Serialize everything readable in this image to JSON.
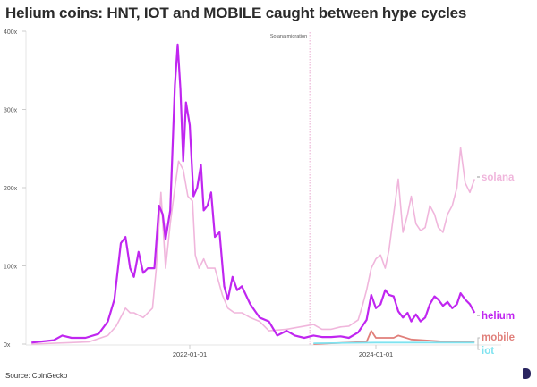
{
  "chart_data": {
    "type": "line",
    "title": "Helium coins: HNT, IOT and MOBILE caught between hype cycles",
    "xlabel": "",
    "ylabel": "",
    "ylim": [
      0,
      400
    ],
    "yticks": [
      0,
      100,
      200,
      300,
      400
    ],
    "ytick_labels": [
      "0x",
      "100x",
      "200x",
      "300x",
      "400x"
    ],
    "xticks": [
      2022.0,
      2024.0
    ],
    "xtick_labels": [
      "2022-01-01",
      "2024-01-01"
    ],
    "grid": false,
    "annotation": {
      "x": 2023.29,
      "label": "Solana migration"
    },
    "series": [
      {
        "name": "solana",
        "color": "#f0b6dc",
        "width": 1.6,
        "points": [
          [
            2020.3,
            0
          ],
          [
            2020.73,
            2
          ],
          [
            2020.92,
            3
          ],
          [
            2021.12,
            11
          ],
          [
            2021.21,
            23
          ],
          [
            2021.31,
            46
          ],
          [
            2021.36,
            40
          ],
          [
            2021.4,
            40
          ],
          [
            2021.5,
            34
          ],
          [
            2021.6,
            46
          ],
          [
            2021.64,
            97
          ],
          [
            2021.69,
            194
          ],
          [
            2021.74,
            97
          ],
          [
            2021.79,
            154
          ],
          [
            2021.84,
            200
          ],
          [
            2021.88,
            234
          ],
          [
            2021.93,
            223
          ],
          [
            2021.98,
            189
          ],
          [
            2022.03,
            183
          ],
          [
            2022.06,
            114
          ],
          [
            2022.1,
            97
          ],
          [
            2022.15,
            109
          ],
          [
            2022.19,
            97
          ],
          [
            2022.27,
            97
          ],
          [
            2022.35,
            63
          ],
          [
            2022.41,
            46
          ],
          [
            2022.48,
            40
          ],
          [
            2022.56,
            40
          ],
          [
            2022.65,
            34
          ],
          [
            2022.75,
            29
          ],
          [
            2022.85,
            17
          ],
          [
            2023.04,
            19
          ],
          [
            2023.23,
            23
          ],
          [
            2023.33,
            25
          ],
          [
            2023.42,
            19
          ],
          [
            2023.52,
            19
          ],
          [
            2023.62,
            22
          ],
          [
            2023.71,
            23
          ],
          [
            2023.81,
            31
          ],
          [
            2023.86,
            51
          ],
          [
            2023.9,
            69
          ],
          [
            2023.95,
            97
          ],
          [
            2024.0,
            109
          ],
          [
            2024.05,
            114
          ],
          [
            2024.1,
            97
          ],
          [
            2024.14,
            120
          ],
          [
            2024.19,
            166
          ],
          [
            2024.24,
            211
          ],
          [
            2024.29,
            143
          ],
          [
            2024.34,
            166
          ],
          [
            2024.38,
            189
          ],
          [
            2024.43,
            154
          ],
          [
            2024.48,
            145
          ],
          [
            2024.53,
            149
          ],
          [
            2024.58,
            177
          ],
          [
            2024.63,
            166
          ],
          [
            2024.67,
            149
          ],
          [
            2024.72,
            143
          ],
          [
            2024.77,
            166
          ],
          [
            2024.82,
            177
          ],
          [
            2024.87,
            200
          ],
          [
            2024.91,
            251
          ],
          [
            2024.96,
            206
          ],
          [
            2025.01,
            194
          ],
          [
            2025.06,
            211
          ]
        ]
      },
      {
        "name": "helium",
        "color": "#c026f0",
        "width": 2.2,
        "points": [
          [
            2020.3,
            2
          ],
          [
            2020.54,
            5
          ],
          [
            2020.63,
            11
          ],
          [
            2020.73,
            8
          ],
          [
            2020.88,
            8
          ],
          [
            2021.02,
            13
          ],
          [
            2021.12,
            29
          ],
          [
            2021.19,
            57
          ],
          [
            2021.26,
            129
          ],
          [
            2021.31,
            137
          ],
          [
            2021.36,
            97
          ],
          [
            2021.4,
            86
          ],
          [
            2021.45,
            118
          ],
          [
            2021.5,
            91
          ],
          [
            2021.55,
            97
          ],
          [
            2021.62,
            97
          ],
          [
            2021.67,
            177
          ],
          [
            2021.71,
            166
          ],
          [
            2021.74,
            134
          ],
          [
            2021.79,
            171
          ],
          [
            2021.84,
            331
          ],
          [
            2021.87,
            383
          ],
          [
            2021.9,
            326
          ],
          [
            2021.93,
            234
          ],
          [
            2021.96,
            309
          ],
          [
            2022.0,
            280
          ],
          [
            2022.04,
            189
          ],
          [
            2022.08,
            200
          ],
          [
            2022.12,
            229
          ],
          [
            2022.15,
            171
          ],
          [
            2022.19,
            177
          ],
          [
            2022.23,
            194
          ],
          [
            2022.27,
            137
          ],
          [
            2022.32,
            143
          ],
          [
            2022.37,
            74
          ],
          [
            2022.41,
            57
          ],
          [
            2022.46,
            86
          ],
          [
            2022.51,
            69
          ],
          [
            2022.56,
            74
          ],
          [
            2022.65,
            51
          ],
          [
            2022.75,
            34
          ],
          [
            2022.85,
            29
          ],
          [
            2022.94,
            11
          ],
          [
            2023.04,
            17
          ],
          [
            2023.13,
            11
          ],
          [
            2023.23,
            8
          ],
          [
            2023.33,
            11
          ],
          [
            2023.42,
            9
          ],
          [
            2023.52,
            9
          ],
          [
            2023.62,
            10
          ],
          [
            2023.71,
            8
          ],
          [
            2023.81,
            15
          ],
          [
            2023.9,
            31
          ],
          [
            2023.95,
            63
          ],
          [
            2024.0,
            46
          ],
          [
            2024.05,
            51
          ],
          [
            2024.1,
            69
          ],
          [
            2024.14,
            63
          ],
          [
            2024.19,
            61
          ],
          [
            2024.24,
            42
          ],
          [
            2024.29,
            34
          ],
          [
            2024.34,
            40
          ],
          [
            2024.38,
            29
          ],
          [
            2024.43,
            38
          ],
          [
            2024.48,
            29
          ],
          [
            2024.53,
            34
          ],
          [
            2024.58,
            51
          ],
          [
            2024.63,
            61
          ],
          [
            2024.67,
            57
          ],
          [
            2024.72,
            49
          ],
          [
            2024.77,
            54
          ],
          [
            2024.82,
            46
          ],
          [
            2024.87,
            51
          ],
          [
            2024.91,
            65
          ],
          [
            2024.96,
            57
          ],
          [
            2025.01,
            51
          ],
          [
            2025.06,
            40
          ]
        ]
      },
      {
        "name": "mobile",
        "color": "#e07f7a",
        "width": 1.8,
        "points": [
          [
            2023.33,
            0
          ],
          [
            2023.9,
            3
          ],
          [
            2023.95,
            17
          ],
          [
            2024.0,
            8
          ],
          [
            2024.19,
            8
          ],
          [
            2024.24,
            11
          ],
          [
            2024.38,
            6
          ],
          [
            2024.77,
            3
          ],
          [
            2025.06,
            3
          ]
        ]
      },
      {
        "name": "iot",
        "color": "#7fe3f0",
        "width": 1.8,
        "points": [
          [
            2023.33,
            1
          ],
          [
            2024.0,
            2
          ],
          [
            2024.5,
            2
          ],
          [
            2025.06,
            2
          ]
        ]
      }
    ],
    "source": "Source: CoinGecko"
  }
}
